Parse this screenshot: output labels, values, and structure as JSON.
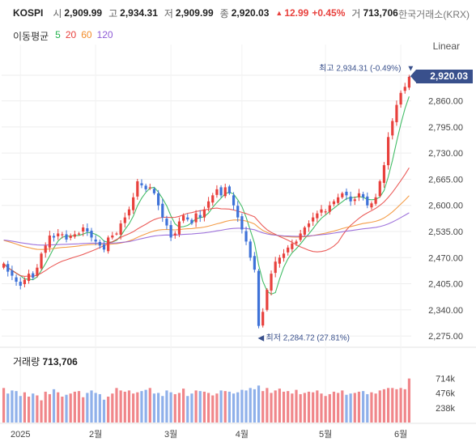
{
  "header": {
    "name": "KOSPI",
    "open_label": "시",
    "open": "2,909.99",
    "high_label": "고",
    "high": "2,934.31",
    "low_label": "저",
    "low": "2,909.99",
    "close_label": "종",
    "close": "2,920.03",
    "change": "12.99",
    "change_pct": "+0.45%",
    "volume_label": "거",
    "volume": "713,706",
    "exchange": "한국거래소(KRX)"
  },
  "moving_average": {
    "label": "이동평균",
    "periods": [
      {
        "text": "5",
        "color": "#22b14c"
      },
      {
        "text": "20",
        "color": "#e8413d"
      },
      {
        "text": "60",
        "color": "#f28c28"
      },
      {
        "text": "120",
        "color": "#8e5bd6"
      }
    ]
  },
  "scale_mode": "Linear",
  "current_price": "2,920.03",
  "annotations": {
    "high": "최고 2,934.31 (-0.49%)",
    "low": "최저 2,284.72 (27.81%)"
  },
  "volume_panel": {
    "label": "거래량",
    "value": "713,706"
  },
  "colors": {
    "up": "#e8413d",
    "down": "#3e72d8",
    "vol_up": "#f0868a",
    "vol_down": "#8fb0ea",
    "tag": "#39508c"
  },
  "chart_data": {
    "type": "candlestick",
    "price_axis": {
      "ticks": [
        "2,275.00",
        "2,340.00",
        "2,405.00",
        "2,470.00",
        "2,535.00",
        "2,600.00",
        "2,665.00",
        "2,730.00",
        "2,795.00",
        "2,860.00"
      ],
      "tick_values": [
        2275,
        2340,
        2405,
        2470,
        2535,
        2600,
        2665,
        2730,
        2795,
        2860
      ],
      "range": [
        2255,
        2960
      ]
    },
    "volume_axis": {
      "ticks": [
        "714k",
        "476k",
        "238k"
      ],
      "tick_values": [
        714,
        476,
        238
      ],
      "range": [
        0,
        840
      ]
    },
    "x_labels": [
      {
        "text": "2025",
        "index": 4
      },
      {
        "text": "2월",
        "index": 22
      },
      {
        "text": "3월",
        "index": 40
      },
      {
        "text": "4월",
        "index": 57
      },
      {
        "text": "5월",
        "index": 77
      },
      {
        "text": "6월",
        "index": 95
      }
    ],
    "closes": [
      2455,
      2435,
      2425,
      2410,
      2400,
      2415,
      2430,
      2420,
      2445,
      2480,
      2500,
      2525,
      2520,
      2530,
      2528,
      2515,
      2525,
      2528,
      2530,
      2545,
      2535,
      2520,
      2510,
      2500,
      2490,
      2520,
      2525,
      2530,
      2555,
      2570,
      2590,
      2620,
      2660,
      2650,
      2640,
      2645,
      2630,
      2600,
      2570,
      2550,
      2520,
      2530,
      2560,
      2575,
      2565,
      2555,
      2580,
      2570,
      2590,
      2610,
      2625,
      2640,
      2625,
      2645,
      2630,
      2600,
      2570,
      2540,
      2510,
      2470,
      2440,
      2300,
      2335,
      2390,
      2430,
      2460,
      2470,
      2480,
      2495,
      2505,
      2510,
      2530,
      2545,
      2555,
      2570,
      2580,
      2590,
      2585,
      2600,
      2610,
      2620,
      2630,
      2625,
      2610,
      2615,
      2630,
      2620,
      2600,
      2605,
      2620,
      2660,
      2700,
      2770,
      2810,
      2850,
      2880,
      2895,
      2920
    ],
    "volumes": [
      560,
      470,
      520,
      510,
      430,
      490,
      420,
      470,
      440,
      360,
      500,
      460,
      540,
      490,
      420,
      450,
      470,
      500,
      510,
      410,
      480,
      520,
      480,
      460,
      370,
      420,
      470,
      560,
      520,
      500,
      520,
      470,
      490,
      510,
      530,
      560,
      470,
      480,
      430,
      520,
      490,
      460,
      480,
      550,
      430,
      470,
      520,
      510,
      500,
      480,
      440,
      470,
      520,
      510,
      500,
      470,
      490,
      530,
      520,
      560,
      540,
      600,
      510,
      560,
      480,
      520,
      550,
      500,
      510,
      470,
      530,
      460,
      480,
      500,
      490,
      520,
      470,
      430,
      460,
      500,
      480,
      520,
      450,
      470,
      480,
      500,
      510,
      460,
      490,
      470,
      520,
      540,
      560,
      560,
      540,
      560,
      540,
      714
    ]
  }
}
